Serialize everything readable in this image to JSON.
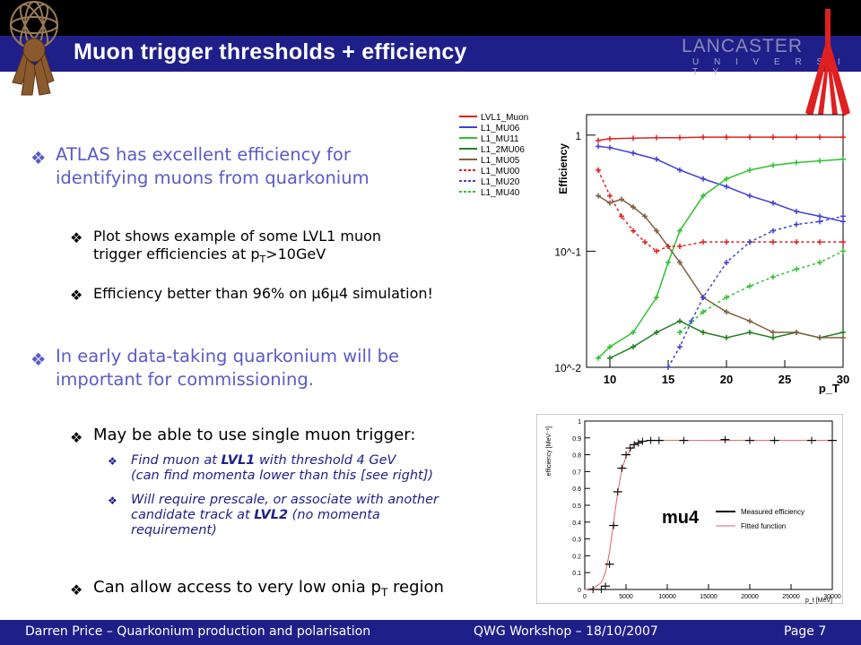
{
  "title": "Muon trigger thresholds + efficiency",
  "logo": {
    "name": "LANCASTER",
    "sub": "U N I V E R S I T Y"
  },
  "bullets": {
    "b1_prefix": "ATLAS",
    "b1_line1": " has excellent efficiency for",
    "b1_line2": "identifying muons from quarkonium",
    "b1a_line1": "Plot shows example of some LVL1 muon",
    "b1a_line2_pre": "trigger efficiencies at p",
    "b1a_line2_sub": "T",
    "b1a_line2_post": ">10GeV",
    "b1b": "Efficiency better than 96% on μ6μ4 simulation!",
    "b2_line1": "In early data-taking quarkonium will be",
    "b2_line2": "important for commissioning.",
    "b2a": "May be able to use single muon trigger:",
    "b2a1_pre": "Find muon at ",
    "b2a1_bold": "LVL1",
    "b2a1_post": " with threshold 4 GeV",
    "b2a1_line2": "(can find momenta lower than this [see right])",
    "b2a2_line1": "Will require prescale, or associate with another",
    "b2a2_line2_pre": "candidate track at ",
    "b2a2_line2_bold": "LVL2",
    "b2a2_line2_post": " (no momenta",
    "b2a2_line3": "requirement)",
    "b2b_pre": "Can allow access to very low onia p",
    "b2b_sub": "T",
    "b2b_post": " region"
  },
  "footer": {
    "left": "Darren Price – Quarkonium production and polarisation",
    "center": "QWG Workshop – 18/10/2007",
    "right": "Page 7"
  },
  "chart_data": [
    {
      "type": "scatter",
      "ylabel": "Efficiency",
      "xlabel": "p_T",
      "xlim": [
        8,
        30
      ],
      "ylim": [
        0.01,
        1.5
      ],
      "yscale": "log",
      "xticks": [
        "10",
        "15",
        "20",
        "25",
        "30"
      ],
      "yticks": [
        "10^-2",
        "10^-1",
        "1"
      ],
      "legend": {
        "placement": "top-left",
        "entries": [
          "LVL1_Muon",
          "L1_MU06",
          "L1_MU11",
          "L1_2MU06",
          "L1_MU05",
          "L1_MU00",
          "L1_MU20",
          "L1_MU40"
        ]
      },
      "series": [
        {
          "name": "LVL1_Muon",
          "color": "#e02020",
          "style": "solid",
          "x": [
            9,
            10,
            12,
            14,
            16,
            18,
            20,
            22,
            24,
            26,
            28,
            30
          ],
          "y": [
            0.9,
            0.93,
            0.94,
            0.95,
            0.95,
            0.96,
            0.96,
            0.96,
            0.96,
            0.96,
            0.96,
            0.96
          ]
        },
        {
          "name": "L1_MU06",
          "color": "#4040d0",
          "style": "solid",
          "x": [
            9,
            10,
            12,
            14,
            16,
            18,
            20,
            22,
            24,
            26,
            28,
            30
          ],
          "y": [
            0.8,
            0.78,
            0.7,
            0.62,
            0.5,
            0.42,
            0.36,
            0.3,
            0.26,
            0.22,
            0.2,
            0.18
          ]
        },
        {
          "name": "L1_MU11",
          "color": "#30c030",
          "style": "solid",
          "x": [
            9,
            10,
            12,
            14,
            15,
            16,
            18,
            20,
            22,
            24,
            26,
            28,
            30
          ],
          "y": [
            0.012,
            0.015,
            0.02,
            0.04,
            0.08,
            0.15,
            0.3,
            0.42,
            0.5,
            0.55,
            0.58,
            0.6,
            0.62
          ]
        },
        {
          "name": "L1_2MU06",
          "color": "#208020",
          "style": "solid",
          "x": [
            10,
            12,
            14,
            16,
            18,
            20,
            22,
            24,
            26,
            28,
            30
          ],
          "y": [
            0.012,
            0.015,
            0.02,
            0.025,
            0.02,
            0.018,
            0.02,
            0.018,
            0.02,
            0.018,
            0.02
          ]
        },
        {
          "name": "L1_MU05",
          "color": "#806040",
          "style": "solid",
          "x": [
            9,
            10,
            11,
            12,
            13,
            14,
            16,
            18,
            20,
            22,
            24,
            26,
            28,
            30
          ],
          "y": [
            0.3,
            0.26,
            0.28,
            0.24,
            0.2,
            0.15,
            0.08,
            0.04,
            0.03,
            0.025,
            0.02,
            0.02,
            0.018,
            0.018
          ]
        },
        {
          "name": "L1_MU00",
          "color": "#e02020",
          "style": "dashed",
          "x": [
            9,
            10,
            11,
            12,
            13,
            14,
            15,
            16,
            18,
            20,
            22,
            24,
            26,
            28,
            30
          ],
          "y": [
            0.5,
            0.3,
            0.2,
            0.15,
            0.12,
            0.1,
            0.11,
            0.11,
            0.12,
            0.12,
            0.12,
            0.12,
            0.12,
            0.12,
            0.12
          ]
        },
        {
          "name": "L1_MU20",
          "color": "#4040d0",
          "style": "dashed",
          "x": [
            15,
            16,
            17,
            18,
            20,
            22,
            24,
            26,
            28,
            30
          ],
          "y": [
            0.01,
            0.015,
            0.025,
            0.04,
            0.08,
            0.12,
            0.15,
            0.17,
            0.18,
            0.2
          ]
        },
        {
          "name": "L1_MU40",
          "color": "#30c030",
          "style": "dashed",
          "x": [
            16,
            18,
            20,
            22,
            24,
            26,
            28,
            30
          ],
          "y": [
            0.02,
            0.03,
            0.04,
            0.05,
            0.06,
            0.07,
            0.08,
            0.1
          ]
        }
      ]
    },
    {
      "type": "line",
      "ylabel": "efficiency [MeV⁻¹]",
      "xlabel": "p_t [MeV]",
      "xlim": [
        0,
        30000
      ],
      "ylim": [
        0,
        1
      ],
      "xticks": [
        "0",
        "5000",
        "10000",
        "15000",
        "20000",
        "25000",
        "30000"
      ],
      "yticks": [
        "0",
        "0.1",
        "0.2",
        "0.3",
        "0.4",
        "0.5",
        "0.6",
        "0.7",
        "0.8",
        "0.9",
        "1"
      ],
      "annotation": "mu4",
      "legend": {
        "placement": "right",
        "entries": [
          "Measured efficiency",
          "Fitted function"
        ]
      },
      "series": [
        {
          "name": "Measured efficiency",
          "color": "#000000",
          "x": [
            1000,
            2000,
            2500,
            3000,
            3500,
            4000,
            4500,
            5000,
            5500,
            6000,
            6500,
            7000,
            8000,
            9000,
            12000,
            17000,
            20000,
            23000,
            27500,
            30000
          ],
          "y": [
            0.0,
            0.0,
            0.02,
            0.15,
            0.38,
            0.58,
            0.72,
            0.8,
            0.84,
            0.86,
            0.87,
            0.88,
            0.885,
            0.885,
            0.885,
            0.89,
            0.885,
            0.885,
            0.885,
            0.885
          ]
        },
        {
          "name": "Fitted function",
          "color": "#e06060",
          "x": [
            0,
            1000,
            2000,
            2500,
            3000,
            3500,
            4000,
            4500,
            5000,
            6000,
            7000,
            8000,
            10000,
            15000,
            20000,
            25000,
            30000
          ],
          "y": [
            0.0,
            0.005,
            0.04,
            0.1,
            0.22,
            0.4,
            0.58,
            0.71,
            0.79,
            0.86,
            0.88,
            0.885,
            0.885,
            0.885,
            0.885,
            0.885,
            0.885
          ]
        }
      ]
    }
  ]
}
